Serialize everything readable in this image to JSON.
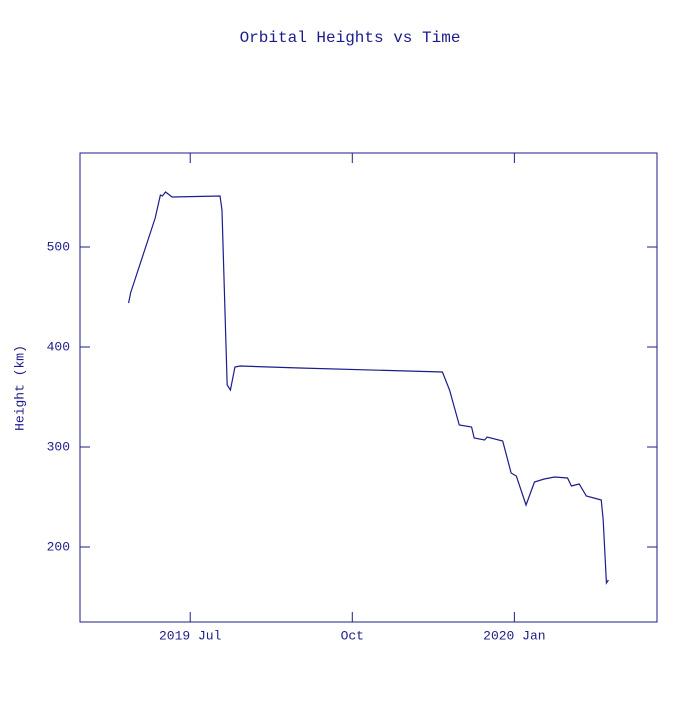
{
  "chart_data": {
    "type": "line",
    "title": "Orbital Heights vs Time",
    "ylabel": "Height (km)",
    "x": [
      2019.405,
      2019.408,
      2019.446,
      2019.454,
      2019.457,
      2019.462,
      2019.472,
      2019.546,
      2019.549,
      2019.557,
      2019.562,
      2019.569,
      2019.577,
      2019.669,
      2019.889,
      2019.9,
      2019.915,
      2019.934,
      2019.938,
      2019.954,
      2019.958,
      2019.982,
      2019.995,
      2020.003,
      2020.018,
      2020.031,
      2020.046,
      2020.062,
      2020.082,
      2020.088,
      2020.1,
      2020.111,
      2020.134,
      2020.137,
      2020.142,
      2020.145
    ],
    "values": [
      444,
      454,
      529,
      552,
      551,
      555,
      550,
      551,
      537,
      362,
      357,
      380,
      381,
      379,
      375,
      357,
      322,
      320,
      309,
      307,
      310,
      306,
      274,
      271,
      242,
      265,
      268,
      270,
      269,
      261,
      263,
      251,
      247,
      227,
      164,
      167
    ],
    "color": "#1c1c8a",
    "xlim": [
      2019.33,
      2020.22
    ],
    "xticks": [
      {
        "value": 2019.5,
        "label": "2019 Jul"
      },
      {
        "value": 2019.75,
        "label": "Oct"
      },
      {
        "value": 2020.0,
        "label": "2020 Jan"
      }
    ],
    "ylim": [
      125,
      594
    ],
    "yticks": [
      200,
      300,
      400,
      500
    ]
  }
}
